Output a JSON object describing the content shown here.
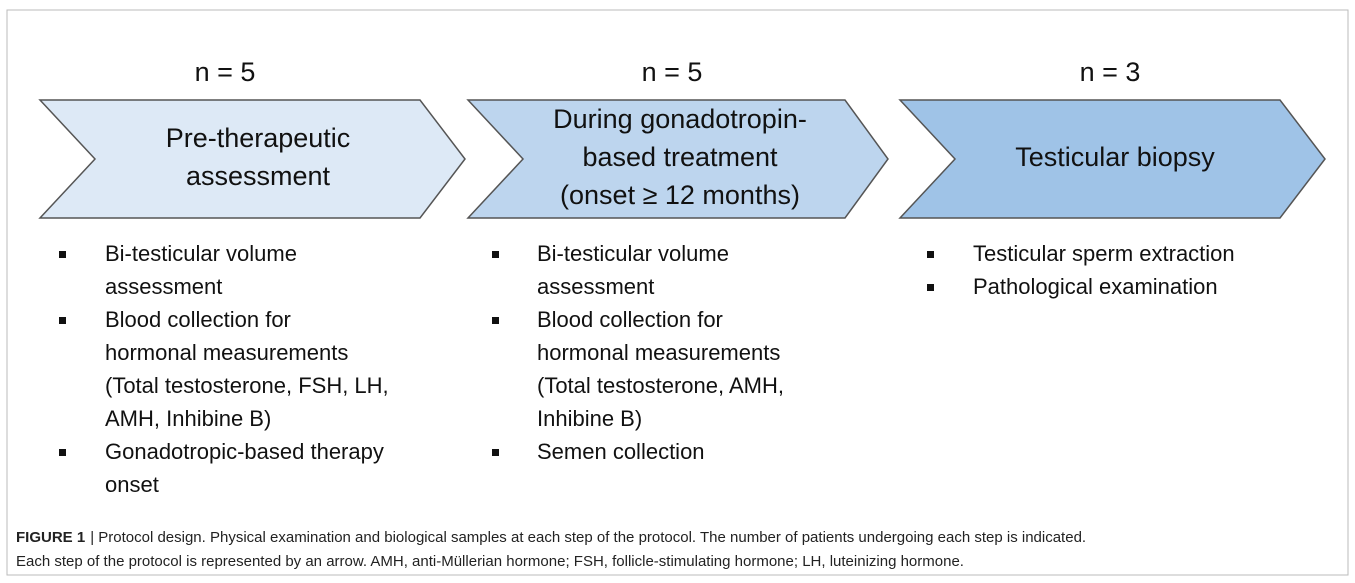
{
  "steps": [
    {
      "count": "n = 5",
      "label": [
        "Pre-therapeutic",
        "assessment"
      ],
      "items": [
        [
          "Bi-testicular volume",
          "assessment"
        ],
        [
          "Blood collection for",
          "hormonal measurements",
          "(Total testosterone, FSH, LH,",
          "AMH, Inhibine B)"
        ],
        [
          "Gonadotropic-based therapy",
          "onset"
        ]
      ]
    },
    {
      "count": "n = 5",
      "label": [
        "During gonadotropin-",
        "based treatment",
        "(onset ≥ 12 months)"
      ],
      "items": [
        [
          "Bi-testicular volume",
          "assessment"
        ],
        [
          "Blood collection for",
          "hormonal measurements",
          "(Total testosterone, AMH,",
          "Inhibine B)"
        ],
        [
          "Semen collection"
        ]
      ]
    },
    {
      "count": "n = 3",
      "label": [
        "Testicular biopsy"
      ],
      "items": [
        [
          "Testicular sperm extraction"
        ],
        [
          "Pathological examination"
        ]
      ]
    }
  ],
  "caption": {
    "label": "FIGURE 1",
    "lines": [
      "| Protocol design. Physical examination and biological samples at each step of the protocol. The number of patients undergoing each step is indicated.",
      "Each step of the protocol is represented by an arrow. AMH, anti-Müllerian hormone; FSH, follicle-stimulating hormone; LH, luteinizing hormone."
    ]
  }
}
